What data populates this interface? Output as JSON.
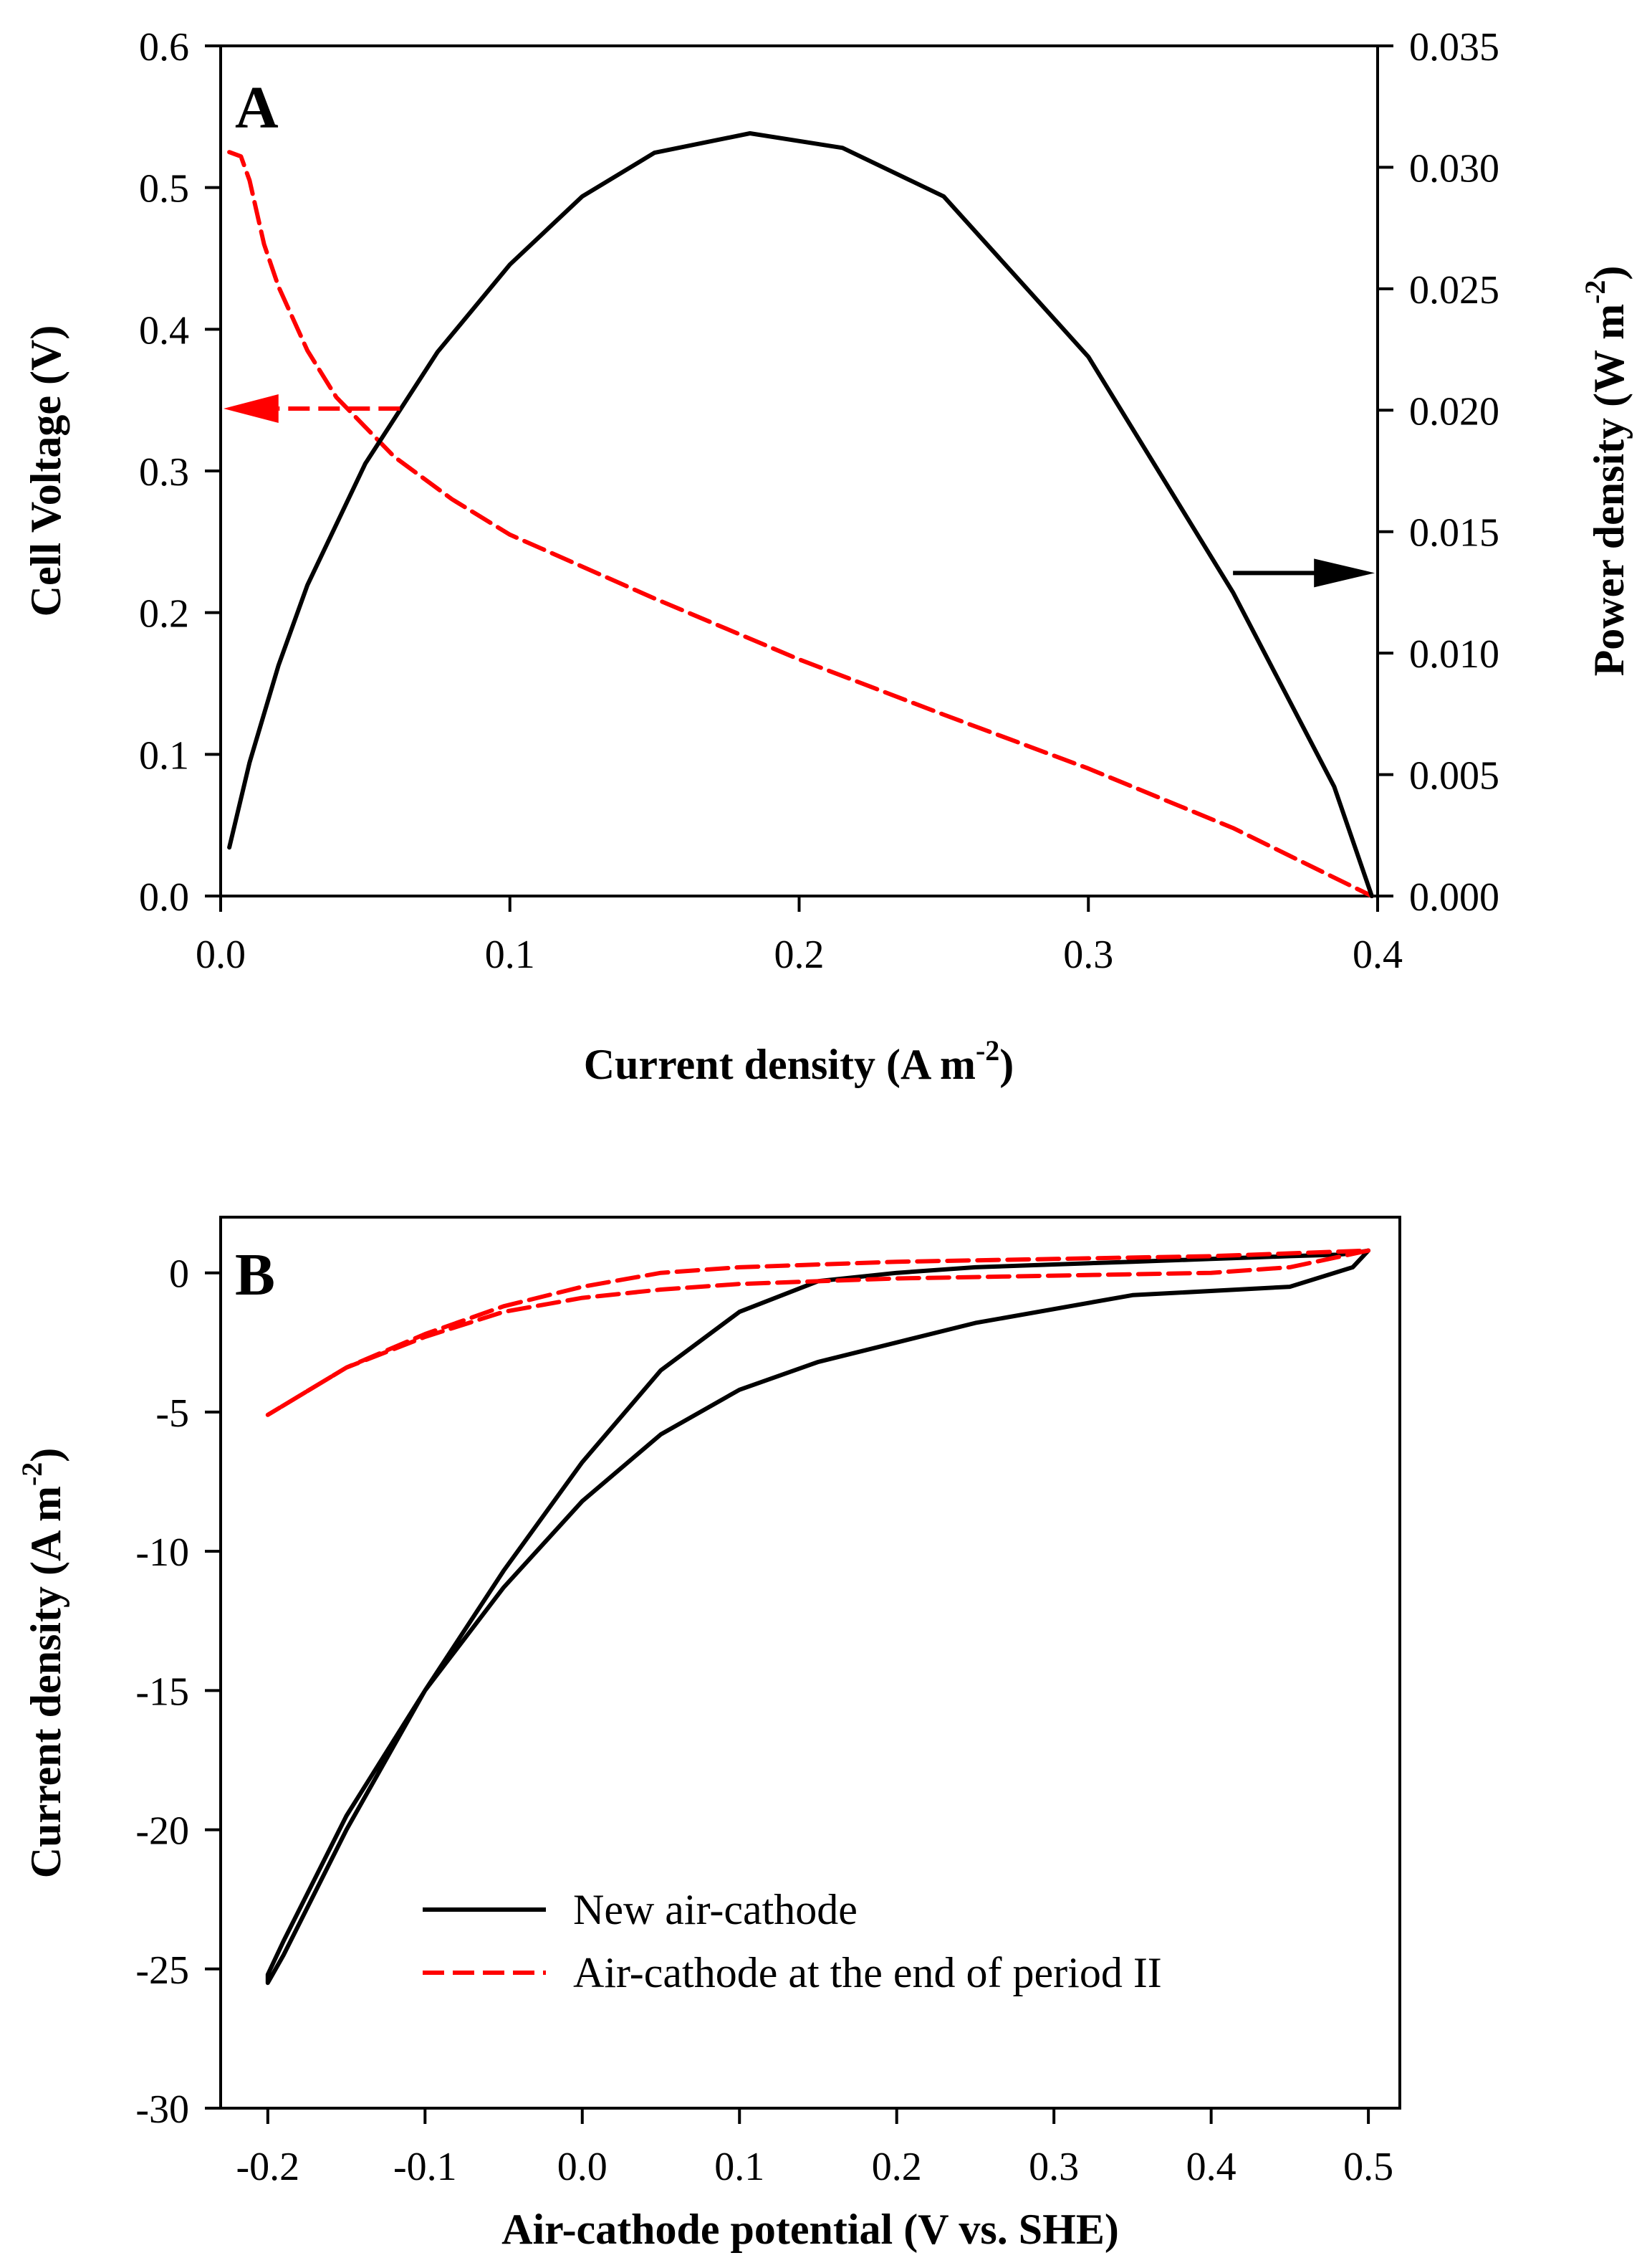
{
  "chart_data": [
    {
      "type": "line",
      "panel_label": "A",
      "xlabel": "Current density (A m",
      "xlabel_sup": "-2",
      "xlabel_end": ")",
      "ylabel": "Cell Voltage (V)",
      "y2label": "Power density (W m",
      "y2label_sup": "-2",
      "y2label_end": ")",
      "xlim": [
        0,
        0.4
      ],
      "ylim": [
        0,
        0.6
      ],
      "y2lim": [
        0,
        0.035
      ],
      "x_ticks": [
        "0.0",
        "0.1",
        "0.2",
        "0.3",
        "0.4"
      ],
      "y_ticks": [
        "0.0",
        "0.1",
        "0.2",
        "0.3",
        "0.4",
        "0.5",
        "0.6"
      ],
      "y2_ticks": [
        "0.000",
        "0.005",
        "0.010",
        "0.015",
        "0.020",
        "0.025",
        "0.030",
        "0.035"
      ],
      "series": [
        {
          "name": "Cell Voltage",
          "axis": "left",
          "color": "#ff0000",
          "style": "dashed",
          "x": [
            0.003,
            0.007,
            0.01,
            0.015,
            0.02,
            0.03,
            0.04,
            0.06,
            0.08,
            0.1,
            0.15,
            0.2,
            0.25,
            0.3,
            0.35,
            0.398
          ],
          "y": [
            0.525,
            0.522,
            0.505,
            0.46,
            0.43,
            0.385,
            0.352,
            0.31,
            0.28,
            0.255,
            0.21,
            0.167,
            0.128,
            0.09,
            0.048,
            0.0
          ]
        },
        {
          "name": "Power density",
          "axis": "right",
          "color": "#000000",
          "style": "solid",
          "x": [
            0.003,
            0.01,
            0.02,
            0.03,
            0.05,
            0.075,
            0.1,
            0.125,
            0.15,
            0.183,
            0.215,
            0.25,
            0.3,
            0.35,
            0.385,
            0.398
          ],
          "y": [
            0.002,
            0.0055,
            0.0095,
            0.0128,
            0.0178,
            0.0224,
            0.026,
            0.0288,
            0.0306,
            0.0314,
            0.0308,
            0.0288,
            0.0222,
            0.0125,
            0.0045,
            0.0
          ]
        }
      ],
      "annotations": [
        {
          "type": "arrow",
          "series": "Cell Voltage",
          "direction": "left",
          "color": "#ff0000"
        },
        {
          "type": "arrow",
          "series": "Power density",
          "direction": "right",
          "color": "#000000"
        }
      ]
    },
    {
      "type": "line",
      "panel_label": "B",
      "xlabel": "Air-cathode potential (V vs. SHE)",
      "ylabel": "Current density (A m",
      "ylabel_sup": "-2",
      "ylabel_end": ")",
      "xlim": [
        -0.23,
        0.52
      ],
      "ylim": [
        -30,
        2
      ],
      "x_ticks": [
        "-0.2",
        "-0.1",
        "0.0",
        "0.1",
        "0.2",
        "0.3",
        "0.4",
        "0.5"
      ],
      "y_ticks": [
        "0",
        "-5",
        "-10",
        "-15",
        "-20",
        "-25",
        "-30"
      ],
      "legend_position": "lower-right",
      "series": [
        {
          "name": "New air-cathode",
          "color": "#000000",
          "style": "solid",
          "x": [
            0.5,
            0.49,
            0.45,
            0.35,
            0.25,
            0.2,
            0.15,
            0.1,
            0.05,
            0.0,
            -0.05,
            -0.1,
            -0.15,
            -0.19,
            -0.2,
            -0.2,
            -0.19,
            -0.15,
            -0.1,
            -0.05,
            0.0,
            0.05,
            0.1,
            0.15,
            0.2,
            0.25,
            0.3,
            0.35,
            0.4,
            0.45,
            0.48,
            0.49,
            0.5
          ],
          "y": [
            0.8,
            0.2,
            -0.5,
            -0.8,
            -1.8,
            -2.5,
            -3.2,
            -4.2,
            -5.8,
            -8.2,
            -11.3,
            -15.0,
            -19.5,
            -24.0,
            -25.2,
            -25.5,
            -24.5,
            -20.0,
            -15.0,
            -10.7,
            -6.8,
            -3.5,
            -1.4,
            -0.3,
            0.0,
            0.2,
            0.3,
            0.4,
            0.5,
            0.6,
            0.65,
            0.7,
            0.8
          ]
        },
        {
          "name": "Air-cathode at the end of period II",
          "color": "#ff0000",
          "style": "dashed",
          "x": [
            0.5,
            0.45,
            0.4,
            0.3,
            0.2,
            0.1,
            0.05,
            0.0,
            -0.05,
            -0.1,
            -0.15,
            -0.2,
            -0.15,
            -0.1,
            -0.05,
            0.0,
            0.05,
            0.1,
            0.2,
            0.3,
            0.4,
            0.45,
            0.5
          ],
          "y": [
            0.8,
            0.2,
            0.0,
            -0.1,
            -0.2,
            -0.4,
            -0.6,
            -0.9,
            -1.4,
            -2.3,
            -3.4,
            -5.1,
            -3.4,
            -2.2,
            -1.2,
            -0.5,
            0.0,
            0.2,
            0.4,
            0.5,
            0.6,
            0.7,
            0.8
          ]
        }
      ]
    }
  ]
}
